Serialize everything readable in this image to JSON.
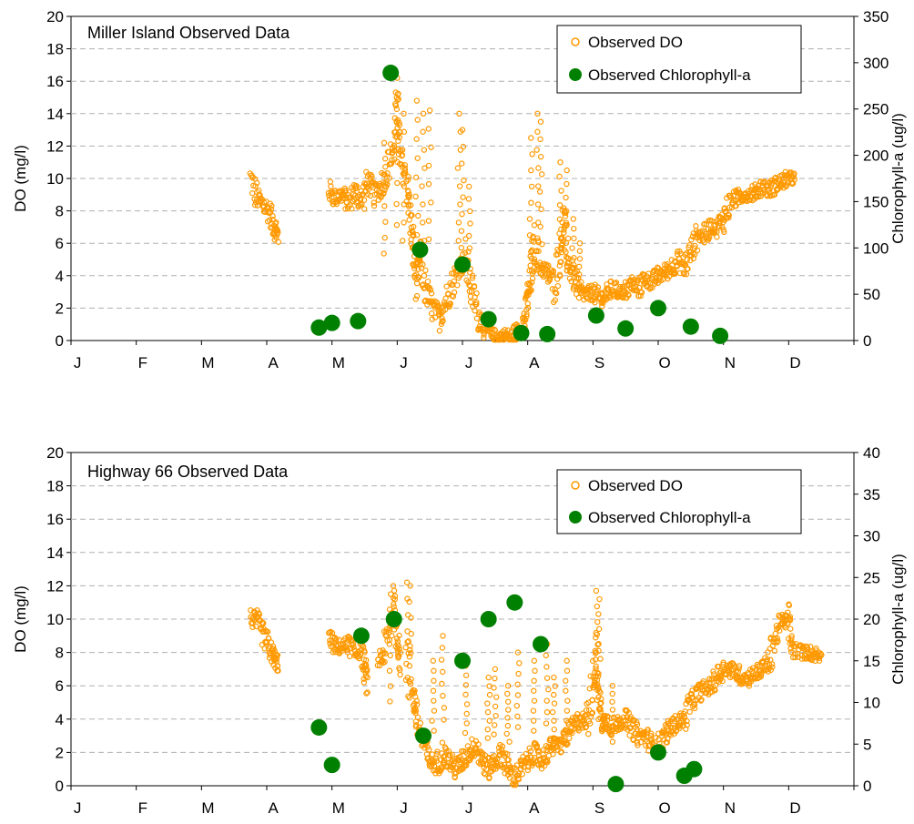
{
  "charts": [
    {
      "title": "Miller Island Observed Data",
      "ylabel_left": "DO (mg/l)",
      "ylabel_right": "Chlorophyll-a (ug/l)",
      "months": [
        "J",
        "F",
        "M",
        "A",
        "M",
        "J",
        "J",
        "A",
        "S",
        "O",
        "N",
        "D"
      ],
      "left_ticks": [
        "0",
        "2",
        "4",
        "6",
        "8",
        "10",
        "12",
        "14",
        "16",
        "18",
        "20"
      ],
      "right_ticks": [
        "0",
        "50",
        "100",
        "150",
        "200",
        "250",
        "300",
        "350"
      ],
      "legend": [
        "Observed DO",
        "Observed Chlorophyll-a"
      ]
    },
    {
      "title": "Highway 66 Observed Data",
      "ylabel_left": "DO (mg/l)",
      "ylabel_right": "Chlorophyll-a (ug/l)",
      "months": [
        "J",
        "F",
        "M",
        "A",
        "M",
        "J",
        "J",
        "A",
        "S",
        "O",
        "N",
        "D"
      ],
      "left_ticks": [
        "0",
        "2",
        "4",
        "6",
        "8",
        "10",
        "12",
        "14",
        "16",
        "18",
        "20"
      ],
      "right_ticks": [
        "0",
        "5",
        "10",
        "15",
        "20",
        "25",
        "30",
        "35",
        "40"
      ],
      "legend": [
        "Observed DO",
        "Observed Chlorophyll-a"
      ]
    }
  ],
  "chart_data": [
    {
      "type": "scatter",
      "title": "Miller Island Observed Data",
      "x_unit": "month of year (0 = Jan 1, 12 = Dec 31)",
      "ylabel": "DO (mg/l)",
      "y2label": "Chlorophyll-a (ug/l)",
      "ylim": [
        0,
        20
      ],
      "y2lim": [
        0,
        350
      ],
      "colors": {
        "do": "#FF9900",
        "chl": "#008000"
      },
      "do_segments": [
        [
          [
            2.75,
            10.0
          ],
          [
            2.85,
            8.8
          ],
          [
            2.95,
            8.4
          ],
          [
            3.05,
            7.8
          ],
          [
            3.12,
            7.0
          ],
          [
            3.18,
            6.3
          ]
        ],
        [
          [
            3.95,
            9.3
          ],
          [
            4.05,
            8.8
          ],
          [
            4.15,
            9.0
          ],
          [
            4.25,
            8.5
          ],
          [
            4.35,
            9.2
          ],
          [
            4.45,
            8.6
          ],
          [
            4.55,
            9.8
          ],
          [
            4.65,
            9.0
          ],
          [
            4.75,
            9.5
          ],
          [
            4.85,
            10.5
          ],
          [
            4.95,
            12.0
          ],
          [
            5.0,
            14.5
          ],
          [
            5.05,
            11.0
          ],
          [
            5.15,
            10.0
          ],
          [
            5.2,
            7.5
          ],
          [
            5.25,
            5.5
          ],
          [
            5.3,
            3.5
          ],
          [
            5.35,
            5.0
          ],
          [
            5.45,
            3.0
          ],
          [
            5.55,
            2.0
          ],
          [
            5.65,
            1.5
          ],
          [
            5.75,
            2.5
          ],
          [
            5.85,
            3.5
          ],
          [
            5.95,
            4.5
          ],
          [
            6.05,
            5.0
          ],
          [
            6.15,
            3.0
          ],
          [
            6.25,
            1.5
          ],
          [
            6.35,
            0.8
          ],
          [
            6.45,
            0.3
          ],
          [
            6.55,
            0.2
          ],
          [
            6.65,
            0.3
          ],
          [
            6.75,
            0.2
          ],
          [
            6.85,
            0.6
          ],
          [
            6.95,
            1.2
          ],
          [
            7.0,
            2.5
          ],
          [
            7.05,
            4.0
          ],
          [
            7.1,
            6.0
          ],
          [
            7.2,
            4.5
          ],
          [
            7.3,
            4.2
          ],
          [
            7.4,
            3.5
          ],
          [
            7.5,
            5.5
          ],
          [
            7.55,
            7.5
          ],
          [
            7.6,
            5.0
          ],
          [
            7.7,
            4.0
          ],
          [
            7.8,
            3.0
          ],
          [
            7.9,
            2.8
          ],
          [
            8.0,
            3.0
          ],
          [
            8.1,
            2.5
          ],
          [
            8.2,
            2.8
          ],
          [
            8.3,
            3.2
          ],
          [
            8.4,
            3.0
          ],
          [
            8.5,
            3.0
          ],
          [
            8.6,
            3.5
          ],
          [
            8.7,
            3.2
          ],
          [
            8.8,
            3.8
          ],
          [
            8.9,
            3.6
          ],
          [
            9.0,
            4.0
          ],
          [
            9.1,
            4.2
          ],
          [
            9.2,
            4.5
          ],
          [
            9.3,
            5.0
          ],
          [
            9.4,
            4.5
          ],
          [
            9.5,
            5.5
          ],
          [
            9.6,
            6.5
          ],
          [
            9.7,
            6.5
          ],
          [
            9.8,
            7.0
          ],
          [
            9.9,
            7.0
          ],
          [
            10.0,
            7.5
          ],
          [
            10.1,
            8.5
          ],
          [
            10.2,
            8.8
          ],
          [
            10.3,
            9.0
          ],
          [
            10.4,
            9.0
          ],
          [
            10.5,
            9.2
          ],
          [
            10.6,
            9.5
          ],
          [
            10.7,
            9.3
          ],
          [
            10.8,
            9.6
          ],
          [
            10.9,
            9.8
          ],
          [
            11.0,
            10.0
          ],
          [
            11.1,
            10.0
          ]
        ]
      ],
      "do_spikes": [
        [
          4.8,
          12.2
        ],
        [
          5.0,
          16.2
        ],
        [
          5.1,
          14.0
        ],
        [
          5.3,
          14.8
        ],
        [
          5.4,
          14.0
        ],
        [
          5.5,
          14.2
        ],
        [
          5.95,
          14.0
        ],
        [
          6.0,
          13.0
        ],
        [
          6.1,
          9.5
        ],
        [
          7.05,
          12.5
        ],
        [
          7.15,
          14.0
        ],
        [
          7.2,
          13.5
        ],
        [
          7.5,
          11.0
        ],
        [
          7.6,
          10.5
        ],
        [
          7.7,
          7.5
        ],
        [
          7.8,
          6.0
        ]
      ],
      "chl_points": [
        [
          3.8,
          14
        ],
        [
          4.0,
          19
        ],
        [
          4.4,
          21
        ],
        [
          4.9,
          289
        ],
        [
          5.35,
          98
        ],
        [
          6.0,
          82
        ],
        [
          6.4,
          23
        ],
        [
          6.9,
          8
        ],
        [
          7.3,
          7
        ],
        [
          8.05,
          27
        ],
        [
          8.5,
          13
        ],
        [
          9.0,
          35
        ],
        [
          9.5,
          15
        ],
        [
          9.95,
          5
        ]
      ]
    },
    {
      "type": "scatter",
      "title": "Highway 66 Observed Data",
      "x_unit": "month of year (0 = Jan 1, 12 = Dec 31)",
      "ylabel": "DO (mg/l)",
      "y2label": "Chlorophyll-a (ug/l)",
      "ylim": [
        0,
        20
      ],
      "y2lim": [
        0,
        40
      ],
      "colors": {
        "do": "#FF9900",
        "chl": "#008000"
      },
      "do_segments": [
        [
          [
            2.75,
            10.1
          ],
          [
            2.85,
            9.8
          ],
          [
            2.95,
            9.0
          ],
          [
            3.05,
            8.2
          ],
          [
            3.12,
            7.6
          ],
          [
            3.18,
            7.3
          ]
        ],
        [
          [
            3.95,
            8.8
          ],
          [
            4.05,
            8.4
          ],
          [
            4.15,
            8.3
          ],
          [
            4.25,
            8.5
          ],
          [
            4.35,
            8.0
          ],
          [
            4.45,
            8.1
          ],
          [
            4.5,
            7.0
          ],
          [
            4.55,
            6.0
          ]
        ],
        [
          [
            4.7,
            7.5
          ],
          [
            4.8,
            8.0
          ],
          [
            4.9,
            9.5
          ],
          [
            4.95,
            11.0
          ],
          [
            5.0,
            9.0
          ],
          [
            5.05,
            7.5
          ]
        ],
        [
          [
            5.15,
            8.0
          ],
          [
            5.25,
            5.5
          ],
          [
            5.3,
            4.0
          ],
          [
            5.4,
            2.5
          ],
          [
            5.5,
            1.5
          ],
          [
            5.6,
            1.2
          ],
          [
            5.7,
            2.0
          ],
          [
            5.8,
            1.5
          ],
          [
            5.9,
            1.0
          ],
          [
            6.0,
            1.5
          ],
          [
            6.1,
            2.0
          ],
          [
            6.2,
            2.5
          ],
          [
            6.3,
            1.5
          ],
          [
            6.4,
            1.0
          ],
          [
            6.5,
            1.5
          ],
          [
            6.6,
            2.0
          ],
          [
            6.7,
            1.0
          ],
          [
            6.8,
            0.5
          ],
          [
            6.9,
            1.0
          ],
          [
            7.0,
            1.5
          ],
          [
            7.1,
            2.0
          ],
          [
            7.2,
            1.5
          ],
          [
            7.3,
            2.0
          ],
          [
            7.4,
            2.5
          ],
          [
            7.5,
            2.5
          ],
          [
            7.6,
            3.0
          ],
          [
            7.7,
            3.5
          ],
          [
            7.8,
            4.0
          ],
          [
            7.9,
            3.8
          ],
          [
            8.0,
            6.0
          ],
          [
            8.05,
            8.0
          ],
          [
            8.1,
            5.0
          ],
          [
            8.15,
            3.8
          ],
          [
            8.2,
            4.0
          ],
          [
            8.3,
            3.5
          ],
          [
            8.4,
            3.8
          ],
          [
            8.5,
            4.0
          ],
          [
            8.6,
            3.5
          ],
          [
            8.7,
            3.0
          ],
          [
            8.8,
            3.0
          ],
          [
            8.9,
            2.5
          ],
          [
            9.0,
            2.5
          ],
          [
            9.1,
            3.0
          ],
          [
            9.2,
            3.5
          ],
          [
            9.3,
            3.8
          ],
          [
            9.4,
            4.0
          ],
          [
            9.5,
            5.0
          ],
          [
            9.6,
            5.5
          ],
          [
            9.7,
            5.8
          ],
          [
            9.8,
            6.0
          ],
          [
            9.9,
            6.5
          ],
          [
            10.0,
            7.0
          ],
          [
            10.1,
            7.0
          ],
          [
            10.2,
            6.8
          ],
          [
            10.3,
            6.5
          ],
          [
            10.4,
            6.5
          ],
          [
            10.5,
            6.8
          ],
          [
            10.6,
            7.0
          ],
          [
            10.7,
            7.5
          ],
          [
            10.8,
            9.0
          ],
          [
            10.9,
            9.8
          ],
          [
            11.0,
            10.0
          ],
          [
            11.05,
            8.2
          ],
          [
            11.2,
            8.0
          ],
          [
            11.3,
            8.0
          ],
          [
            11.4,
            7.9
          ],
          [
            11.5,
            7.8
          ]
        ]
      ],
      "do_spikes": [
        [
          4.9,
          11.5
        ],
        [
          5.15,
          12.2
        ],
        [
          5.2,
          12.0
        ],
        [
          5.55,
          7.5
        ],
        [
          5.7,
          9.0
        ],
        [
          6.05,
          7.2
        ],
        [
          6.4,
          6.5
        ],
        [
          6.5,
          7.0
        ],
        [
          6.7,
          6.0
        ],
        [
          6.85,
          8.0
        ],
        [
          7.1,
          7.5
        ],
        [
          7.3,
          8.5
        ],
        [
          7.4,
          6.5
        ],
        [
          7.6,
          7.5
        ],
        [
          8.05,
          11.7
        ],
        [
          8.1,
          11.2
        ],
        [
          8.3,
          6.0
        ]
      ],
      "chl_points": [
        [
          3.8,
          7
        ],
        [
          4.0,
          2.5
        ],
        [
          4.45,
          18
        ],
        [
          4.95,
          20
        ],
        [
          5.4,
          6
        ],
        [
          6.0,
          15
        ],
        [
          6.4,
          20
        ],
        [
          6.8,
          22
        ],
        [
          7.2,
          17
        ],
        [
          8.35,
          0.2
        ],
        [
          9.0,
          4
        ],
        [
          9.4,
          1.2
        ],
        [
          9.55,
          2
        ]
      ]
    }
  ]
}
